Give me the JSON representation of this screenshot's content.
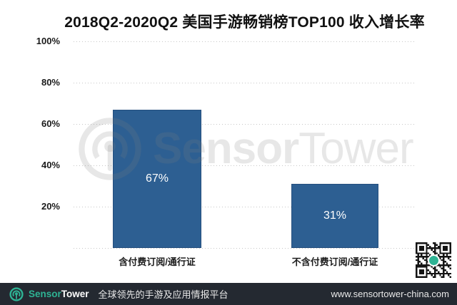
{
  "title": "2018Q2-2020Q2 美国手游畅销榜TOP100 收入增长率",
  "chart_data": {
    "type": "bar",
    "title": "2018Q2-2020Q2 美国手游畅销榜TOP100 收入增长率",
    "categories": [
      "含付费订阅/通行证",
      "不含付费订阅/通行证"
    ],
    "values": [
      67,
      31
    ],
    "value_labels": [
      "67%",
      "31%"
    ],
    "xlabel": "",
    "ylabel": "",
    "ylim": [
      0,
      100
    ],
    "ytick_labels": [
      "100%",
      "80%",
      "60%",
      "40%",
      "20%"
    ],
    "grid": "horizontal-dotted",
    "legend": "none",
    "bar_color": "#2d5f92",
    "value_label_color": "#ffffff"
  },
  "watermark": {
    "logo": "sensortower-logo",
    "text_bold": "Sensor",
    "text_light": "Tower"
  },
  "qr_code": {
    "description": "qr-code-with-sensortower-logo",
    "center_color": "#2eb394"
  },
  "footer": {
    "brand_primary": "Sensor",
    "brand_secondary": "Tower",
    "tagline": "全球领先的手游及应用情报平台",
    "website": "www.sensortower-china.com",
    "accent_color": "#2eb394",
    "background_color": "#242931"
  }
}
